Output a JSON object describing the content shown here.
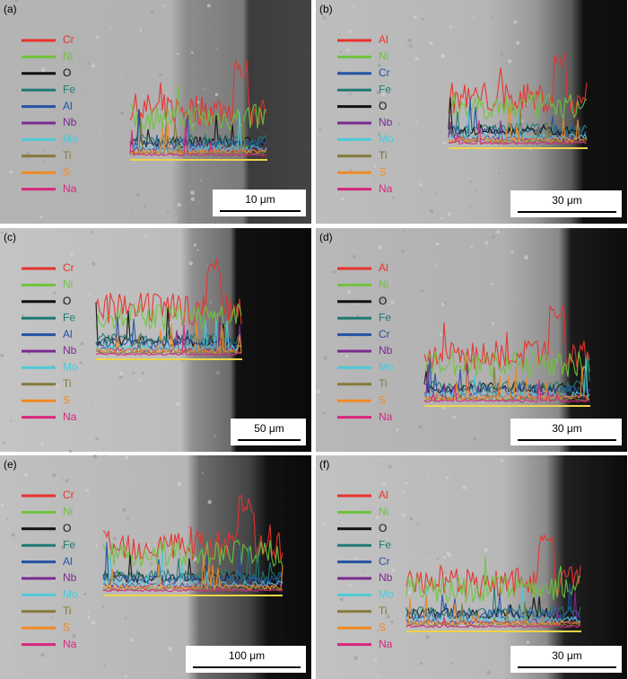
{
  "panels": [
    {
      "label": "(a)",
      "scale_bar": "10 μm",
      "legend": [
        {
          "name": "Cr",
          "color": "#e8322c"
        },
        {
          "name": "Ni",
          "color": "#6fc33c"
        },
        {
          "name": "O",
          "color": "#111111"
        },
        {
          "name": "Fe",
          "color": "#1f7a72"
        },
        {
          "name": "Al",
          "color": "#2452a4"
        },
        {
          "name": "Nb",
          "color": "#7b2a8f"
        },
        {
          "name": "Mo",
          "color": "#4fc9d8"
        },
        {
          "name": "Ti",
          "color": "#857a3a"
        },
        {
          "name": "S",
          "color": "#f08a24"
        },
        {
          "name": "Na",
          "color": "#d8267e"
        }
      ]
    },
    {
      "label": "(b)",
      "scale_bar": "30 μm",
      "legend": [
        {
          "name": "Al",
          "color": "#e8322c"
        },
        {
          "name": "Ni",
          "color": "#6fc33c"
        },
        {
          "name": "Cr",
          "color": "#2452a4"
        },
        {
          "name": "Fe",
          "color": "#1f7a72"
        },
        {
          "name": "O",
          "color": "#111111"
        },
        {
          "name": "Nb",
          "color": "#7b2a8f"
        },
        {
          "name": "Mo",
          "color": "#4fc9d8"
        },
        {
          "name": "Ti",
          "color": "#857a3a"
        },
        {
          "name": "S",
          "color": "#f08a24"
        },
        {
          "name": "Na",
          "color": "#d8267e"
        }
      ]
    },
    {
      "label": "(c)",
      "scale_bar": "50 μm",
      "legend": [
        {
          "name": "Cr",
          "color": "#e8322c"
        },
        {
          "name": "Ni",
          "color": "#6fc33c"
        },
        {
          "name": "O",
          "color": "#111111"
        },
        {
          "name": "Fe",
          "color": "#1f7a72"
        },
        {
          "name": "Al",
          "color": "#2452a4"
        },
        {
          "name": "Nb",
          "color": "#7b2a8f"
        },
        {
          "name": "Mo",
          "color": "#4fc9d8"
        },
        {
          "name": "Ti",
          "color": "#857a3a"
        },
        {
          "name": "S",
          "color": "#f08a24"
        },
        {
          "name": "Na",
          "color": "#d8267e"
        }
      ]
    },
    {
      "label": "(d)",
      "scale_bar": "30 μm",
      "legend": [
        {
          "name": "Al",
          "color": "#e8322c"
        },
        {
          "name": "Ni",
          "color": "#6fc33c"
        },
        {
          "name": "O",
          "color": "#111111"
        },
        {
          "name": "Fe",
          "color": "#1f7a72"
        },
        {
          "name": "Cr",
          "color": "#2452a4"
        },
        {
          "name": "Nb",
          "color": "#7b2a8f"
        },
        {
          "name": "Mo",
          "color": "#4fc9d8"
        },
        {
          "name": "Ti",
          "color": "#857a3a"
        },
        {
          "name": "S",
          "color": "#f08a24"
        },
        {
          "name": "Na",
          "color": "#d8267e"
        }
      ]
    },
    {
      "label": "(e)",
      "scale_bar": "100 μm",
      "legend": [
        {
          "name": "Cr",
          "color": "#e8322c"
        },
        {
          "name": "Ni",
          "color": "#6fc33c"
        },
        {
          "name": "O",
          "color": "#111111"
        },
        {
          "name": "Fe",
          "color": "#1f7a72"
        },
        {
          "name": "Al",
          "color": "#2452a4"
        },
        {
          "name": "Nb",
          "color": "#7b2a8f"
        },
        {
          "name": "Mo",
          "color": "#4fc9d8"
        },
        {
          "name": "Ti",
          "color": "#857a3a"
        },
        {
          "name": "S",
          "color": "#f08a24"
        },
        {
          "name": "Na",
          "color": "#d8267e"
        }
      ]
    },
    {
      "label": "(f)",
      "scale_bar": "30 μm",
      "legend": [
        {
          "name": "Al",
          "color": "#e8322c"
        },
        {
          "name": "Ni",
          "color": "#6fc33c"
        },
        {
          "name": "O",
          "color": "#111111"
        },
        {
          "name": "Fe",
          "color": "#1f7a72"
        },
        {
          "name": "Cr",
          "color": "#2452a4"
        },
        {
          "name": "Nb",
          "color": "#7b2a8f"
        },
        {
          "name": "Mo",
          "color": "#4fc9d8"
        },
        {
          "name": "Ti",
          "color": "#857a3a"
        },
        {
          "name": "S",
          "color": "#f08a24"
        },
        {
          "name": "Na",
          "color": "#d8267e"
        }
      ]
    }
  ]
}
